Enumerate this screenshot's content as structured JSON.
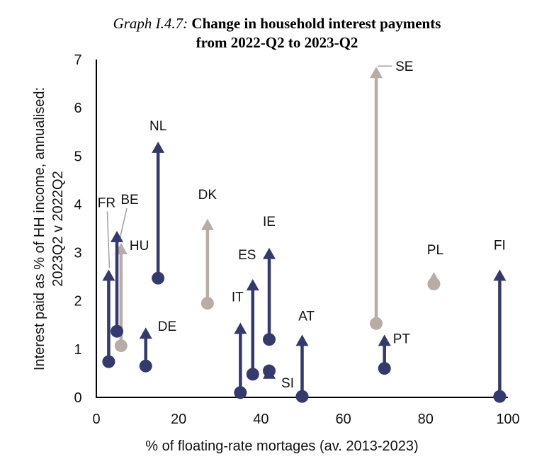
{
  "title": {
    "prefix": "Graph I.4.7:",
    "line1": "Change in household interest payments",
    "line2": "from 2022-Q2 to 2023-Q2"
  },
  "colors": {
    "euro_area": "#343a6e",
    "non_euro": "#b8aca6",
    "axis": "#000000",
    "leader": "#a0a0a0"
  },
  "chart_data": {
    "type": "arrow",
    "title": "Change in household interest payments from 2022-Q2 to 2023-Q2",
    "xlabel": "% of floating-rate mortages (av. 2013-2023)",
    "ylabel_line1": "Interest paid as % of HH income, annualised:",
    "ylabel_line2": "2023Q2 v 2022Q2",
    "xlim": [
      0,
      100
    ],
    "ylim": [
      0,
      7
    ],
    "xticks": [
      "0",
      "20",
      "40",
      "60",
      "80",
      "100"
    ],
    "yticks": [
      "0",
      "1",
      "2",
      "3",
      "4",
      "5",
      "6",
      "7"
    ],
    "grid": false,
    "legend": "none",
    "series": [
      {
        "country": "FR",
        "x": 3,
        "y_2022q2": 0.74,
        "y_2023q2": 2.65,
        "group": "euro_area"
      },
      {
        "country": "BE",
        "x": 5,
        "y_2022q2": 1.37,
        "y_2023q2": 3.45,
        "group": "euro_area"
      },
      {
        "country": "HU",
        "x": 6,
        "y_2022q2": 1.07,
        "y_2023q2": 3.2,
        "group": "non_euro"
      },
      {
        "country": "DE",
        "x": 12,
        "y_2022q2": 0.65,
        "y_2023q2": 1.45,
        "group": "euro_area"
      },
      {
        "country": "NL",
        "x": 15,
        "y_2022q2": 2.47,
        "y_2023q2": 5.3,
        "group": "euro_area"
      },
      {
        "country": "DK",
        "x": 27,
        "y_2022q2": 1.95,
        "y_2023q2": 3.7,
        "group": "non_euro"
      },
      {
        "country": "IT",
        "x": 35,
        "y_2022q2": 0.1,
        "y_2023q2": 1.55,
        "group": "euro_area"
      },
      {
        "country": "ES",
        "x": 38,
        "y_2022q2": 0.48,
        "y_2023q2": 2.45,
        "group": "euro_area"
      },
      {
        "country": "SI",
        "x": 42,
        "y_2022q2": 0.55,
        "y_2023q2": 0.62,
        "group": "euro_area"
      },
      {
        "country": "IE",
        "x": 42,
        "y_2022q2": 1.2,
        "y_2023q2": 3.1,
        "group": "euro_area"
      },
      {
        "country": "AT",
        "x": 50,
        "y_2022q2": 0.02,
        "y_2023q2": 1.3,
        "group": "euro_area"
      },
      {
        "country": "SE",
        "x": 68,
        "y_2022q2": 1.53,
        "y_2023q2": 6.85,
        "group": "non_euro"
      },
      {
        "country": "PT",
        "x": 70,
        "y_2022q2": 0.6,
        "y_2023q2": 1.3,
        "group": "euro_area"
      },
      {
        "country": "PL",
        "x": 82,
        "y_2022q2": 2.35,
        "y_2023q2": 2.6,
        "group": "non_euro"
      },
      {
        "country": "FI",
        "x": 98,
        "y_2022q2": 0.02,
        "y_2023q2": 2.65,
        "group": "euro_area"
      }
    ]
  }
}
